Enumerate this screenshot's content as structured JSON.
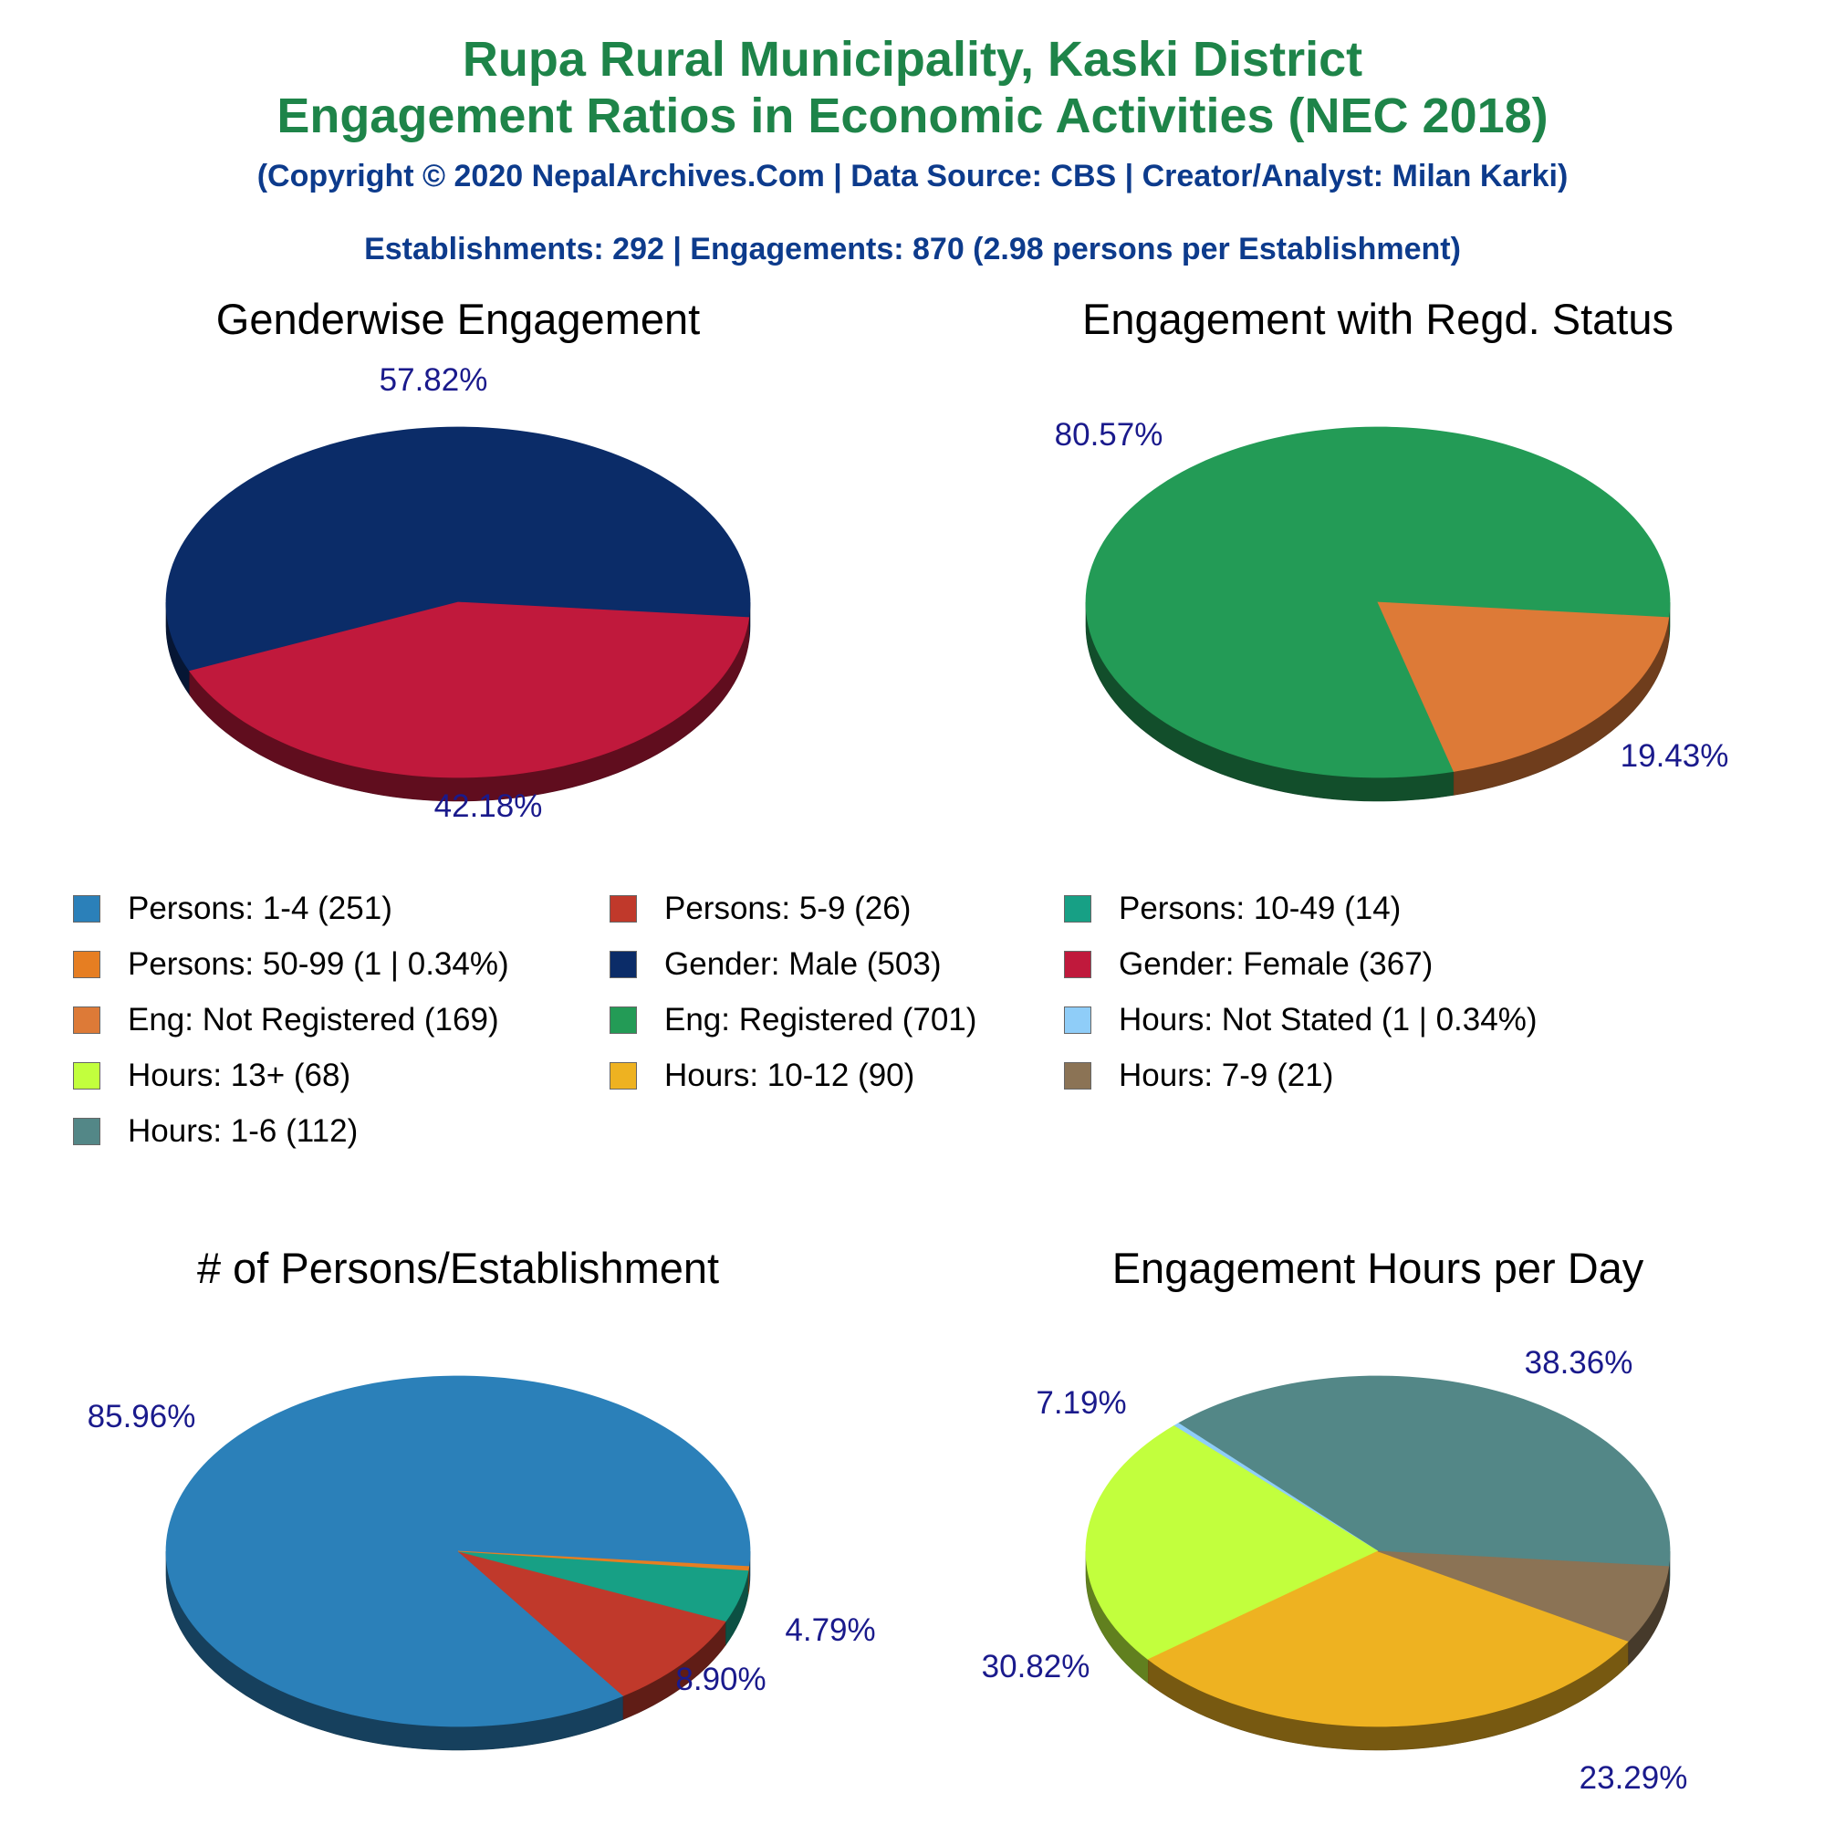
{
  "header": {
    "title_line1": "Rupa Rural Municipality, Kaski District",
    "title_line2": "Engagement Ratios in Economic Activities (NEC 2018)",
    "copyright": "(Copyright © 2020 NepalArchives.Com | Data Source: CBS | Creator/Analyst: Milan Karki)",
    "summary": "Establishments: 292 | Engagements: 870 (2.98 persons per Establishment)"
  },
  "legend": [
    {
      "label": "Persons: 1-4 (251)",
      "color": "#2b80b9"
    },
    {
      "label": "Persons: 5-9 (26)",
      "color": "#c0392b"
    },
    {
      "label": "Persons: 10-49 (14)",
      "color": "#17a085"
    },
    {
      "label": "Persons: 50-99 (1 | 0.34%)",
      "color": "#e67e22"
    },
    {
      "label": "Gender: Male (503)",
      "color": "#0b2c68"
    },
    {
      "label": "Gender: Female (367)",
      "color": "#c0193c"
    },
    {
      "label": "Eng: Not Registered (169)",
      "color": "#dd7a37"
    },
    {
      "label": "Eng: Registered (701)",
      "color": "#239b56"
    },
    {
      "label": "Hours: Not Stated (1 | 0.34%)",
      "color": "#8fcdf8"
    },
    {
      "label": "Hours: 13+ (68)",
      "color": "#c2ff3d"
    },
    {
      "label": "Hours: 10-12 (90)",
      "color": "#eeb221"
    },
    {
      "label": "Hours: 7-9 (21)",
      "color": "#8b7355"
    },
    {
      "label": "Hours: 1-6 (112)",
      "color": "#538787"
    }
  ],
  "chart_data": [
    {
      "type": "pie",
      "title": "Genderwise Engagement",
      "slices": [
        {
          "name": "Gender: Male",
          "value": 503,
          "percent": 57.82,
          "label": "57.82%",
          "color": "#0b2c68"
        },
        {
          "name": "Gender: Female",
          "value": 367,
          "percent": 42.18,
          "label": "42.18%",
          "color": "#c0193c"
        }
      ]
    },
    {
      "type": "pie",
      "title": "Engagement with Regd. Status",
      "slices": [
        {
          "name": "Eng: Registered",
          "value": 701,
          "percent": 80.57,
          "label": "80.57%",
          "color": "#239b56"
        },
        {
          "name": "Eng: Not Registered",
          "value": 169,
          "percent": 19.43,
          "label": "19.43%",
          "color": "#dd7a37"
        }
      ]
    },
    {
      "type": "pie",
      "title": "# of Persons/Establishment",
      "slices": [
        {
          "name": "Persons: 1-4",
          "value": 251,
          "percent": 85.96,
          "label": "85.96%",
          "color": "#2b80b9"
        },
        {
          "name": "Persons: 5-9",
          "value": 26,
          "percent": 8.9,
          "label": "8.90%",
          "color": "#c0392b"
        },
        {
          "name": "Persons: 10-49",
          "value": 14,
          "percent": 4.79,
          "label": "4.79%",
          "color": "#17a085"
        },
        {
          "name": "Persons: 50-99",
          "value": 1,
          "percent": 0.34,
          "label": "",
          "color": "#e67e22"
        }
      ]
    },
    {
      "type": "pie",
      "title": "Engagement Hours per Day",
      "slices": [
        {
          "name": "Hours: 1-6",
          "value": 112,
          "percent": 38.36,
          "label": "38.36%",
          "color": "#538787"
        },
        {
          "name": "Hours: Not Stated",
          "value": 1,
          "percent": 0.34,
          "label": "",
          "color": "#8fcdf8"
        },
        {
          "name": "Hours: 13+",
          "value": 68,
          "percent": 23.29,
          "label": "23.29%",
          "color": "#c2ff3d"
        },
        {
          "name": "Hours: 10-12",
          "value": 90,
          "percent": 30.82,
          "label": "30.82%",
          "color": "#eeb221"
        },
        {
          "name": "Hours: 7-9",
          "value": 21,
          "percent": 7.19,
          "label": "7.19%",
          "color": "#8b7355"
        }
      ]
    }
  ]
}
